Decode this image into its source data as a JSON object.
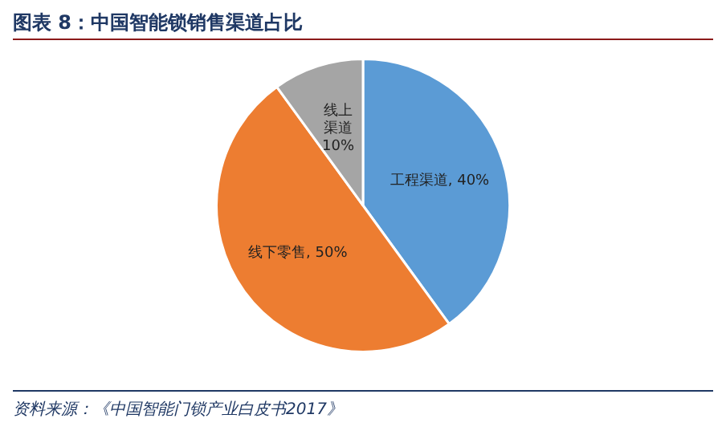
{
  "chart_data": {
    "type": "pie",
    "title": "图表 8：中国智能锁销售渠道占比",
    "categories": [
      "工程渠道",
      "线下零售",
      "线上渠道"
    ],
    "values": [
      40,
      50,
      10
    ],
    "colors": [
      "#5b9bd5",
      "#ed7d31",
      "#a5a5a5"
    ],
    "value_labels": [
      "40%",
      "50%",
      "10%"
    ],
    "legend": false,
    "annotations": [
      "资料来源：《中国智能门锁产业白皮书2017》"
    ]
  }
}
